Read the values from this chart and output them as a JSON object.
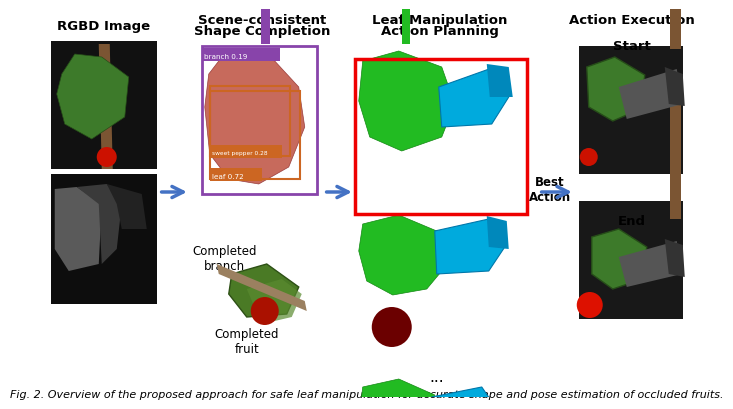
{
  "col1_title": "RGBD Image",
  "col2_line1": "Scene-consistent",
  "col2_line2": "Shape Completion",
  "col3_line1": "Leaf Manipulation",
  "col3_line2": "Action Planning",
  "col4_title": "Action Execution",
  "col4_sub1": "Start",
  "col4_sub2": "End",
  "label_branch": "Completed\nbranch",
  "label_fruit": "Completed\nfruit",
  "label_best": "Best\nAction",
  "dots": "...",
  "bg_color": "#ffffff",
  "arrow_color": "#4472C4",
  "title_fontsize": 9.5,
  "label_fontsize": 8.5,
  "caption_fontsize": 8.0,
  "caption": "Fig. 2. Overview of the proposed approach for safe leaf manipulation for accurate shape and pose estimation of occluded fruits."
}
